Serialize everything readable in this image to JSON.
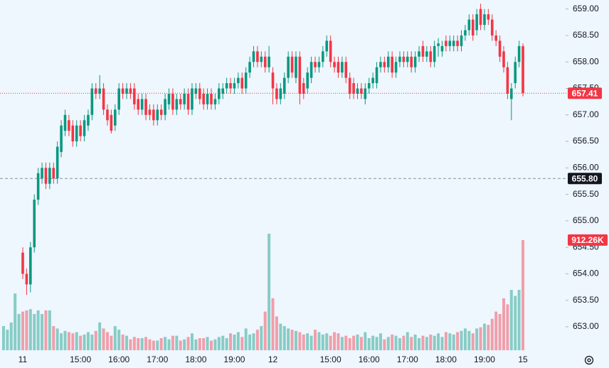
{
  "chart_data": {
    "type": "candlestick",
    "categories": [
      null,
      null,
      null,
      null,
      null,
      "11",
      null,
      null,
      null,
      null,
      null,
      null,
      null,
      null,
      null,
      null,
      null,
      null,
      null,
      null,
      "15:00",
      null,
      null,
      null,
      null,
      null,
      null,
      null,
      null,
      null,
      "16:00",
      null,
      null,
      null,
      null,
      null,
      null,
      null,
      null,
      null,
      "17:00",
      null,
      null,
      null,
      null,
      null,
      null,
      null,
      null,
      null,
      "18:00",
      null,
      null,
      null,
      null,
      null,
      null,
      null,
      null,
      null,
      "19:00",
      null,
      null,
      null,
      null,
      null,
      null,
      null,
      null,
      null,
      "12",
      null,
      null,
      null,
      null,
      null,
      null,
      null,
      null,
      null,
      null,
      null,
      null,
      null,
      null,
      "15:00",
      null,
      null,
      null,
      null,
      null,
      null,
      null,
      null,
      null,
      "16:00",
      null,
      null,
      null,
      null,
      null,
      null,
      null,
      null,
      null,
      "17:00",
      null,
      null,
      null,
      null,
      null,
      null,
      null,
      null,
      null,
      "18:00",
      null,
      null,
      null,
      null,
      null,
      null,
      null,
      null,
      null,
      "19:00",
      null,
      null,
      null,
      null,
      null,
      null,
      null,
      null,
      null,
      "15"
    ],
    "open": [
      null,
      null,
      null,
      null,
      null,
      654.4,
      654.0,
      653.8,
      654.5,
      655.4,
      655.8,
      656.0,
      655.7,
      656.0,
      655.8,
      656.3,
      656.7,
      656.9,
      656.8,
      656.5,
      656.8,
      656.6,
      656.8,
      657.0,
      657.5,
      657.4,
      657.5,
      657.1,
      657.0,
      656.8,
      657.1,
      657.5,
      657.4,
      657.5,
      657.5,
      657.3,
      657.1,
      657.3,
      657.1,
      657.1,
      656.9,
      657.1,
      657.0,
      657.2,
      657.4,
      657.1,
      657.3,
      657.2,
      657.4,
      657.1,
      657.4,
      657.5,
      657.4,
      657.2,
      657.4,
      657.2,
      657.3,
      657.4,
      657.5,
      657.6,
      657.5,
      657.6,
      657.7,
      657.5,
      657.8,
      658.0,
      658.2,
      658.0,
      658.1,
      657.9,
      657.8,
      657.5,
      657.3,
      657.4,
      657.7,
      658.1,
      657.7,
      658.1,
      657.6,
      657.5,
      657.7,
      658.0,
      657.9,
      658.0,
      658.2,
      658.4,
      658.0,
      658.0,
      657.8,
      658.0,
      657.7,
      657.6,
      657.4,
      657.5,
      657.3,
      657.5,
      657.6,
      657.6,
      657.9,
      658.0,
      657.9,
      658.1,
      657.8,
      658.0,
      658.1,
      658.0,
      658.1,
      657.9,
      658.1,
      658.3,
      658.1,
      658.2,
      658.0,
      658.3,
      658.2,
      658.4,
      658.3,
      658.3,
      658.4,
      658.3,
      658.5,
      658.6,
      658.8,
      658.6,
      659.0,
      658.7,
      658.9,
      658.8,
      658.5,
      658.4,
      658.2,
      657.9,
      657.3,
      657.6,
      658.0,
      658.3
    ],
    "high": [
      null,
      null,
      null,
      null,
      null,
      654.5,
      654.1,
      654.6,
      655.5,
      656.0,
      656.1,
      656.1,
      656.1,
      656.1,
      656.5,
      656.9,
      657.1,
      657.0,
      656.9,
      656.9,
      656.9,
      657.0,
      657.1,
      657.6,
      657.6,
      657.75,
      657.6,
      657.2,
      657.1,
      657.2,
      657.6,
      657.6,
      657.6,
      657.6,
      657.6,
      657.4,
      657.4,
      657.4,
      657.2,
      657.2,
      657.2,
      657.2,
      657.4,
      657.5,
      657.5,
      657.4,
      657.4,
      657.5,
      657.5,
      657.6,
      657.6,
      657.6,
      657.5,
      657.5,
      657.5,
      657.4,
      657.6,
      657.6,
      657.7,
      657.7,
      657.7,
      657.8,
      657.8,
      657.9,
      658.1,
      658.3,
      658.3,
      658.2,
      658.2,
      658.3,
      657.9,
      657.6,
      657.6,
      657.8,
      658.2,
      658.2,
      658.2,
      658.2,
      657.7,
      657.9,
      658.1,
      658.1,
      658.1,
      658.3,
      658.5,
      658.5,
      658.1,
      658.1,
      658.1,
      658.1,
      657.8,
      657.7,
      657.6,
      657.6,
      657.6,
      657.7,
      657.8,
      658.0,
      658.1,
      658.1,
      658.2,
      658.2,
      658.1,
      658.2,
      658.2,
      658.2,
      658.2,
      658.2,
      658.3,
      658.4,
      658.3,
      658.3,
      658.4,
      658.45,
      658.4,
      658.5,
      658.5,
      658.5,
      658.5,
      658.6,
      658.7,
      658.9,
      658.9,
      659.0,
      659.1,
      659.0,
      659.0,
      658.9,
      658.6,
      658.5,
      658.3,
      658.0,
      657.6,
      658.1,
      658.4,
      658.35
    ],
    "low": [
      null,
      null,
      null,
      null,
      null,
      653.9,
      653.6,
      653.65,
      654.4,
      655.3,
      655.7,
      655.6,
      655.6,
      655.7,
      655.7,
      656.2,
      656.6,
      656.6,
      656.4,
      656.4,
      656.5,
      656.5,
      656.7,
      656.9,
      657.3,
      657.3,
      657.0,
      656.8,
      656.65,
      656.7,
      657.0,
      657.3,
      657.3,
      657.3,
      657.1,
      657.0,
      657.0,
      656.9,
      656.9,
      656.8,
      656.8,
      656.9,
      656.9,
      657.1,
      657.0,
      657.0,
      657.1,
      657.1,
      657.0,
      657.0,
      657.3,
      657.2,
      657.1,
      657.1,
      657.1,
      657.1,
      657.2,
      657.3,
      657.4,
      657.4,
      657.4,
      657.5,
      657.4,
      657.4,
      657.7,
      657.9,
      657.9,
      657.9,
      657.8,
      657.8,
      657.2,
      657.2,
      657.2,
      657.3,
      657.6,
      657.7,
      657.6,
      657.2,
      657.3,
      657.4,
      657.6,
      657.8,
      657.8,
      657.9,
      658.1,
      657.9,
      657.8,
      657.7,
      657.7,
      657.6,
      657.3,
      657.3,
      657.3,
      657.3,
      657.2,
      657.4,
      657.5,
      657.5,
      657.8,
      657.8,
      657.8,
      657.7,
      657.7,
      657.9,
      657.9,
      657.9,
      657.8,
      657.8,
      658.0,
      658.0,
      658.0,
      657.9,
      657.9,
      658.1,
      658.1,
      658.2,
      658.2,
      658.2,
      658.2,
      658.2,
      658.4,
      658.5,
      658.4,
      658.5,
      658.6,
      658.6,
      658.7,
      658.4,
      658.3,
      658.0,
      657.8,
      657.3,
      656.9,
      657.5,
      657.9,
      657.35
    ],
    "close": [
      null,
      null,
      null,
      null,
      null,
      654.0,
      653.8,
      654.5,
      655.4,
      655.9,
      656.0,
      655.7,
      656.0,
      655.8,
      656.4,
      656.8,
      657.0,
      656.7,
      656.5,
      656.8,
      656.6,
      656.9,
      657.0,
      657.5,
      657.4,
      657.5,
      657.1,
      656.9,
      656.7,
      657.1,
      657.5,
      657.4,
      657.5,
      657.4,
      657.2,
      657.1,
      657.3,
      657.0,
      657.0,
      656.9,
      657.1,
      657.0,
      657.3,
      657.4,
      657.1,
      657.3,
      657.2,
      657.4,
      657.1,
      657.5,
      657.5,
      657.3,
      657.2,
      657.4,
      657.2,
      657.3,
      657.5,
      657.5,
      657.6,
      657.5,
      657.6,
      657.7,
      657.5,
      657.8,
      658.0,
      658.2,
      658.0,
      658.1,
      657.9,
      658.1,
      657.5,
      657.3,
      657.5,
      657.7,
      658.1,
      657.8,
      658.1,
      657.4,
      657.4,
      657.8,
      658.0,
      657.9,
      658.0,
      658.2,
      658.4,
      658.0,
      657.9,
      657.8,
      658.0,
      657.7,
      657.4,
      657.4,
      657.5,
      657.4,
      657.5,
      657.6,
      657.7,
      657.9,
      658.0,
      657.9,
      658.1,
      657.8,
      658.0,
      658.1,
      658.0,
      658.1,
      657.9,
      658.1,
      658.2,
      658.1,
      658.2,
      658.0,
      658.3,
      658.35,
      658.3,
      658.3,
      658.4,
      658.4,
      658.3,
      658.5,
      658.6,
      658.8,
      658.5,
      658.9,
      658.7,
      658.9,
      658.8,
      658.5,
      658.4,
      658.1,
      657.9,
      657.4,
      657.5,
      658.0,
      658.3,
      657.41
    ],
    "volume": [
      200,
      170,
      230,
      470,
      300,
      320,
      330,
      340,
      300,
      330,
      300,
      330,
      330,
      200,
      180,
      140,
      160,
      150,
      140,
      150,
      120,
      130,
      150,
      130,
      160,
      230,
      180,
      150,
      120,
      200,
      170,
      130,
      120,
      90,
      110,
      100,
      100,
      110,
      90,
      80,
      80,
      100,
      110,
      90,
      120,
      120,
      80,
      90,
      110,
      140,
      90,
      100,
      100,
      110,
      80,
      90,
      110,
      120,
      100,
      140,
      130,
      150,
      110,
      180,
      130,
      140,
      170,
      200,
      320,
      965,
      430,
      280,
      220,
      200,
      180,
      170,
      160,
      150,
      130,
      140,
      120,
      170,
      150,
      130,
      140,
      120,
      150,
      140,
      110,
      120,
      100,
      120,
      130,
      110,
      150,
      100,
      120,
      110,
      140,
      90,
      110,
      130,
      120,
      100,
      120,
      150,
      110,
      130,
      100,
      120,
      110,
      130,
      120,
      140,
      110,
      150,
      140,
      130,
      150,
      160,
      180,
      160,
      140,
      180,
      190,
      220,
      210,
      260,
      320,
      300,
      430,
      380,
      500,
      450,
      500,
      912.26
    ],
    "volume_last_label": "912.26K",
    "up_color": "#089981",
    "down_color": "#f23645",
    "ylim": [
      652.53,
      659.17
    ],
    "yticks": [
      {
        "value": 659,
        "label": "659.00"
      },
      {
        "value": 658.5,
        "label": "658.50"
      },
      {
        "value": 658,
        "label": "658.00"
      },
      {
        "value": 657.5,
        "label": "657.50"
      },
      {
        "value": 657,
        "label": "657.00"
      },
      {
        "value": 656.5,
        "label": "656.50"
      },
      {
        "value": 656,
        "label": "656.00"
      },
      {
        "value": 655.5,
        "label": "655.50"
      },
      {
        "value": 655,
        "label": "655.00"
      },
      {
        "value": 654.5,
        "label": "654.50"
      },
      {
        "value": 654,
        "label": "654.00"
      },
      {
        "value": 653.5,
        "label": "653.50"
      },
      {
        "value": 653,
        "label": "653.00"
      }
    ],
    "reference_line": {
      "value": 655.8,
      "label": "655.80"
    }
  }
}
